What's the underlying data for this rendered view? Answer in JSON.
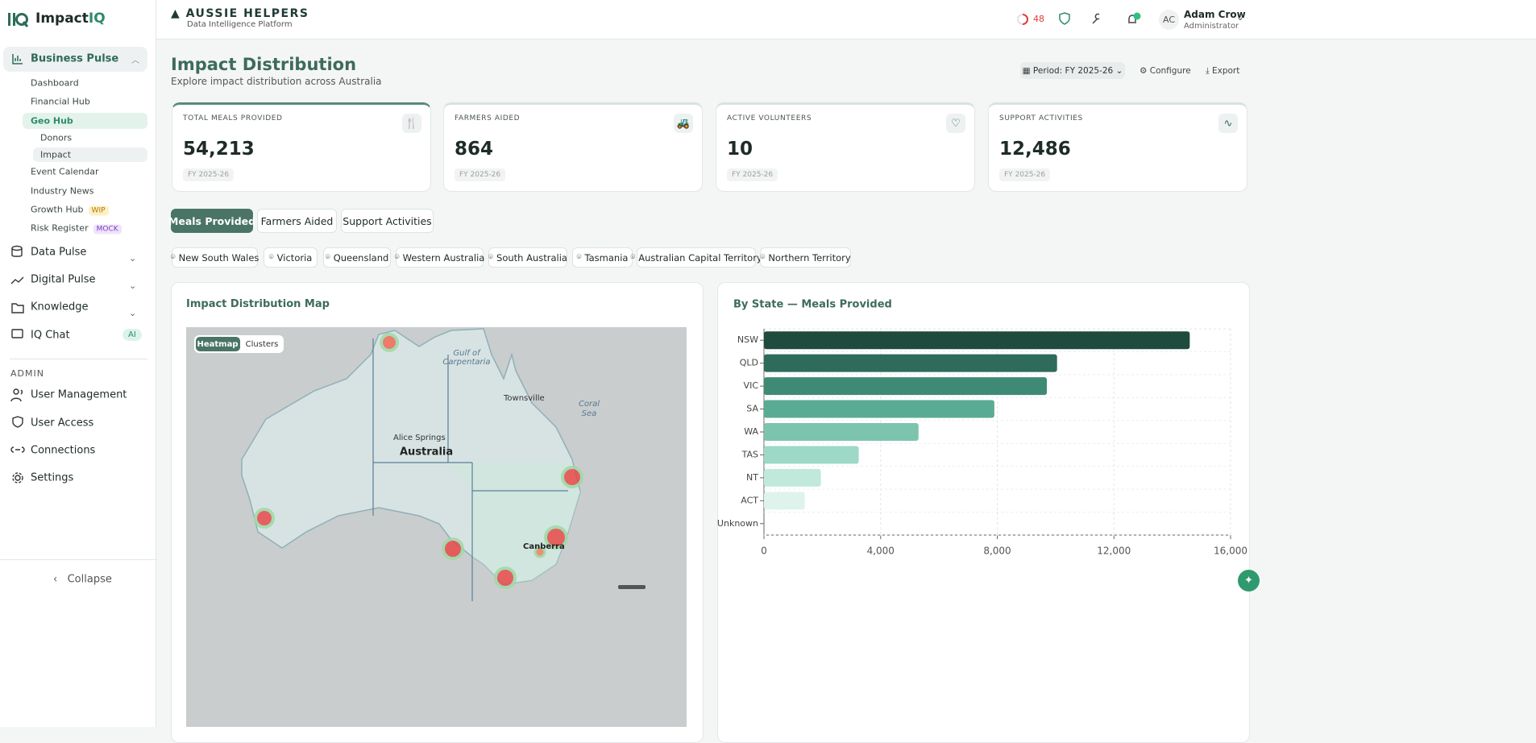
{
  "sidebar": {
    "brand": [
      "Impact",
      "IQ"
    ],
    "main": [
      {
        "label": "Business Pulse"
      },
      {
        "label": "Data Pulse"
      },
      {
        "label": "Digital Pulse"
      },
      {
        "label": "Knowledge"
      },
      {
        "label": "IQ Chat",
        "badge": "AI"
      }
    ],
    "business_pulse": [
      {
        "label": "Dashboard"
      },
      {
        "label": "Financial Hub"
      },
      {
        "label": "Geo Hub"
      },
      {
        "label": "Event Calendar"
      },
      {
        "label": "Industry News"
      },
      {
        "label": "Growth Hub",
        "badge": "WIP"
      },
      {
        "label": "Risk Register",
        "badge": "MOCK"
      }
    ],
    "geo_hub": [
      "Donors",
      "Impact"
    ],
    "admin_heading": "ADMIN",
    "admin": [
      "User Management",
      "User Access",
      "Connections",
      "Settings"
    ],
    "collapse": "Collapse"
  },
  "header": {
    "org": "AUSSIE HELPERS",
    "tagline": "Data Intelligence Platform",
    "alerts": 48,
    "initials": "AC",
    "user_name": "Adam Crow",
    "user_role": "Administrator"
  },
  "page": {
    "title": "Impact Distribution",
    "subtitle": "Explore impact distribution across Australia",
    "period": "Period: FY 2025-26",
    "configure": "Configure",
    "export": "Export"
  },
  "kpis": [
    {
      "label": "TOTAL MEALS PROVIDED",
      "value": "54,213",
      "period": "FY 2025-26"
    },
    {
      "label": "FARMERS AIDED",
      "value": "864",
      "period": "FY 2025-26"
    },
    {
      "label": "ACTIVE VOLUNTEERS",
      "value": "10",
      "period": "FY 2025-26"
    },
    {
      "label": "SUPPORT ACTIVITIES",
      "value": "12,486",
      "period": "FY 2025-26"
    }
  ],
  "tabs": [
    "Meals Provided",
    "Farmers Aided",
    "Support Activities"
  ],
  "states": [
    "New South Wales",
    "Victoria",
    "Queensland",
    "Western Australia",
    "South Australia",
    "Tasmania",
    "Australian Capital Territory",
    "Northern Territory"
  ],
  "map": {
    "title": "Impact Distribution Map",
    "modes": [
      "Heatmap",
      "Clusters"
    ],
    "labels": [
      "Gulf of",
      "Carpentaria",
      "Townsville",
      "Coral",
      "Sea",
      "Alice Springs",
      "Australia",
      "Canberra"
    ]
  },
  "chart_data": {
    "type": "bar",
    "orientation": "horizontal",
    "title": "By State — Meals Provided",
    "categories": [
      "NSW",
      "QLD",
      "VIC",
      "SA",
      "WA",
      "TAS",
      "NT",
      "ACT",
      "Unknown"
    ],
    "values": [
      14600,
      10050,
      9700,
      7900,
      5300,
      3250,
      1950,
      1400,
      0
    ],
    "colors": [
      "#1f4a3e",
      "#2e6b5a",
      "#3f8a74",
      "#5aab93",
      "#7cc4ad",
      "#9dd9c6",
      "#c0e9dc",
      "#def3ec",
      "#eef8f5"
    ],
    "xlim": [
      0,
      16000
    ],
    "xticks": [
      0,
      {
        "value": 4000,
        "label": "4,000"
      },
      {
        "value": 8000,
        "label": "8,000"
      },
      {
        "value": 12000,
        "label": "12,000"
      },
      {
        "value": 16000,
        "label": "16,000"
      }
    ],
    "grid": true
  }
}
